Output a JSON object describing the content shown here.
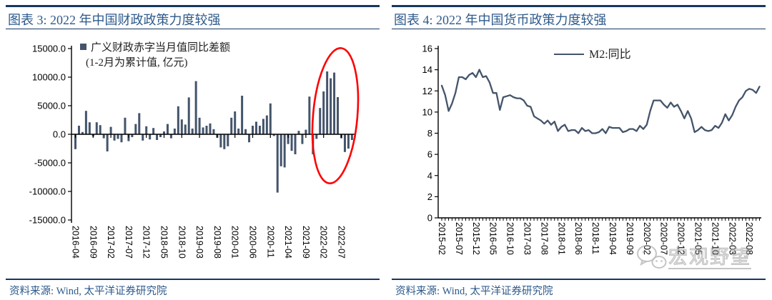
{
  "colors": {
    "rule_navy": "#17375e",
    "title_blue": "#2d5a8c",
    "bar_fill": "#44546a",
    "line_stroke": "#44546a",
    "axis_black": "#000000",
    "highlight_red": "#ff0000",
    "watermark_gray": "#a5a5a5"
  },
  "panels": [
    {
      "title": "图表 3: 2022 年中国财政政策力度较强",
      "source": "资料来源: Wind, 太平洋证券研究院"
    },
    {
      "title": "图表 4: 2022 年中国货币政策力度较强",
      "source": "资料来源: Wind, 太平洋证券研究院",
      "watermark": "宏观野望"
    }
  ],
  "chart_data": [
    {
      "type": "bar",
      "title": "图表 3: 2022 年中国财政政策力度较强",
      "legend": "广义财政赤字当月值同比差额",
      "legend_note": "(1-2月为累计值, 亿元)",
      "unit": "亿元",
      "ylim": [
        -15000,
        15000
      ],
      "ytick_step": 5000,
      "ytick_decimals": 1,
      "xtick_every": 5,
      "grid": false,
      "legend_position": "top-left-inside",
      "annotation": "red ellipse highlighting 2022 bars",
      "categories": [
        "2016-04",
        "2016-05",
        "2016-06",
        "2016-07",
        "2016-08",
        "2016-09",
        "2016-10",
        "2016-11",
        "2016-12",
        "2017-01",
        "2017-02",
        "2017-03",
        "2017-04",
        "2017-05",
        "2017-06",
        "2017-07",
        "2017-08",
        "2017-09",
        "2017-10",
        "2017-11",
        "2017-12",
        "2018-01",
        "2018-02",
        "2018-03",
        "2018-04",
        "2018-05",
        "2018-06",
        "2018-07",
        "2018-08",
        "2018-09",
        "2018-10",
        "2018-11",
        "2018-12",
        "2019-01",
        "2019-02",
        "2019-03",
        "2019-04",
        "2019-05",
        "2019-06",
        "2019-07",
        "2019-08",
        "2019-09",
        "2019-10",
        "2019-11",
        "2019-12",
        "2020-01",
        "2020-02",
        "2020-03",
        "2020-04",
        "2020-05",
        "2020-06",
        "2020-07",
        "2020-08",
        "2020-09",
        "2020-10",
        "2020-11",
        "2020-12",
        "2021-01",
        "2021-02",
        "2021-03",
        "2021-04",
        "2021-05",
        "2021-06",
        "2021-07",
        "2021-08",
        "2021-09",
        "2021-10",
        "2021-11",
        "2021-12",
        "2022-01",
        "2022-02",
        "2022-03",
        "2022-04",
        "2022-05",
        "2022-06",
        "2022-07",
        "2022-08",
        "2022-09",
        "2022-10"
      ],
      "values": [
        -2600,
        1500,
        400,
        4100,
        2100,
        -400,
        2100,
        1600,
        -700,
        -3000,
        1300,
        -1100,
        -800,
        -1400,
        2900,
        -1200,
        -500,
        1800,
        3700,
        -1100,
        1400,
        -900,
        1100,
        -1000,
        -500,
        500,
        1800,
        -700,
        1000,
        4900,
        2600,
        1700,
        6450,
        1000,
        9300,
        2900,
        1200,
        1500,
        1900,
        900,
        -600,
        -2300,
        -2600,
        -2100,
        2900,
        4000,
        1000,
        6750,
        900,
        -1400,
        1500,
        2200,
        1500,
        2700,
        3300,
        5400,
        -300,
        -10200,
        -5600,
        -5800,
        -1700,
        -2900,
        -3500,
        600,
        -1700,
        800,
        6600,
        -3500,
        -800,
        4600,
        7500,
        11000,
        9800,
        10800,
        6500,
        -700,
        -3100,
        -2500,
        -1000
      ]
    },
    {
      "type": "line",
      "title": "图表 4: 2022 年中国货币政策力度较强",
      "ylim": [
        0,
        16
      ],
      "ytick_step": 2,
      "ytick_decimals": 0,
      "xtick_every": 5,
      "grid": false,
      "legend_position": "top-center-inside",
      "x": [
        "2015-02",
        "2015-03",
        "2015-04",
        "2015-05",
        "2015-06",
        "2015-07",
        "2015-08",
        "2015-09",
        "2015-10",
        "2015-11",
        "2015-12",
        "2016-01",
        "2016-02",
        "2016-03",
        "2016-04",
        "2016-05",
        "2016-06",
        "2016-07",
        "2016-08",
        "2016-09",
        "2016-10",
        "2016-11",
        "2016-12",
        "2017-01",
        "2017-02",
        "2017-03",
        "2017-04",
        "2017-05",
        "2017-06",
        "2017-07",
        "2017-08",
        "2017-09",
        "2017-10",
        "2017-11",
        "2017-12",
        "2018-01",
        "2018-02",
        "2018-03",
        "2018-04",
        "2018-05",
        "2018-06",
        "2018-07",
        "2018-08",
        "2018-09",
        "2018-10",
        "2018-11",
        "2018-12",
        "2019-01",
        "2019-02",
        "2019-03",
        "2019-04",
        "2019-05",
        "2019-06",
        "2019-07",
        "2019-08",
        "2019-09",
        "2019-10",
        "2019-11",
        "2019-12",
        "2020-01",
        "2020-02",
        "2020-03",
        "2020-04",
        "2020-05",
        "2020-06",
        "2020-07",
        "2020-08",
        "2020-09",
        "2020-10",
        "2020-11",
        "2020-12",
        "2021-01",
        "2021-02",
        "2021-03",
        "2021-04",
        "2021-05",
        "2021-06",
        "2021-07",
        "2021-08",
        "2021-09",
        "2021-10",
        "2021-11",
        "2021-12",
        "2022-01",
        "2022-02",
        "2022-03",
        "2022-04",
        "2022-05",
        "2022-06",
        "2022-07",
        "2022-08",
        "2022-09",
        "2022-10",
        "2022-11"
      ],
      "series": [
        {
          "name": "M2:同比",
          "values": [
            12.5,
            11.6,
            10.1,
            10.8,
            11.8,
            13.3,
            13.3,
            13.1,
            13.5,
            13.7,
            13.3,
            14.0,
            13.3,
            13.4,
            12.8,
            11.8,
            11.8,
            10.2,
            11.4,
            11.5,
            11.6,
            11.4,
            11.3,
            11.3,
            11.1,
            10.6,
            10.5,
            9.6,
            9.4,
            9.2,
            8.9,
            9.2,
            8.8,
            9.1,
            8.2,
            8.6,
            8.8,
            8.2,
            8.3,
            8.3,
            8.0,
            8.5,
            8.2,
            8.3,
            8.0,
            8.0,
            8.1,
            8.4,
            8.0,
            8.6,
            8.5,
            8.5,
            8.5,
            8.1,
            8.2,
            8.4,
            8.4,
            8.2,
            8.7,
            8.4,
            8.8,
            10.1,
            11.1,
            11.1,
            11.1,
            10.7,
            10.4,
            10.9,
            10.5,
            10.7,
            10.1,
            9.4,
            10.1,
            9.4,
            8.1,
            8.3,
            8.6,
            8.3,
            8.2,
            8.3,
            8.7,
            8.5,
            9.0,
            9.8,
            9.2,
            9.7,
            10.5,
            11.1,
            11.4,
            12.0,
            12.2,
            12.1,
            11.8,
            12.4
          ]
        }
      ]
    }
  ]
}
